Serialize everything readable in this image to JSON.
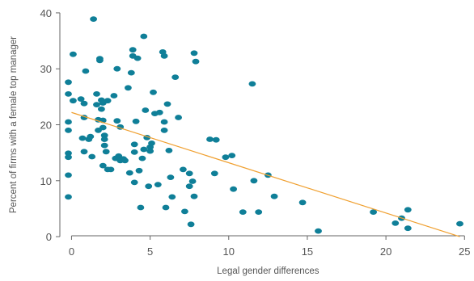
{
  "chart_data": {
    "type": "scatter",
    "xlabel": "Legal gender differences",
    "ylabel": "Percent of firms with a female top manager",
    "xlim": [
      -1,
      25.5
    ],
    "ylim": [
      -1,
      41
    ],
    "x_ticks": [
      0,
      5,
      10,
      15,
      20,
      25
    ],
    "y_ticks": [
      0,
      10,
      20,
      30,
      40
    ],
    "grid": false,
    "point_color": "#0f7f98",
    "trend_color": "#f0a030",
    "trendline": {
      "x": [
        0,
        24.7
      ],
      "y": [
        22.2,
        0
      ]
    },
    "points": [
      [
        -0.2,
        27.6
      ],
      [
        -0.2,
        25.5
      ],
      [
        -0.2,
        20.5
      ],
      [
        -0.2,
        19.0
      ],
      [
        -0.2,
        14.9
      ],
      [
        -0.2,
        14.2
      ],
      [
        -0.2,
        11.0
      ],
      [
        -0.2,
        7.1
      ],
      [
        0.1,
        32.6
      ],
      [
        0.1,
        24.3
      ],
      [
        0.6,
        24.6
      ],
      [
        0.8,
        23.8
      ],
      [
        0.8,
        21.3
      ],
      [
        0.7,
        17.6
      ],
      [
        0.8,
        15.2
      ],
      [
        0.9,
        29.6
      ],
      [
        1.1,
        17.4
      ],
      [
        1.2,
        17.9
      ],
      [
        1.3,
        14.3
      ],
      [
        1.4,
        38.9
      ],
      [
        1.6,
        25.5
      ],
      [
        1.6,
        23.6
      ],
      [
        1.7,
        20.9
      ],
      [
        1.7,
        19.0
      ],
      [
        1.8,
        31.5
      ],
      [
        1.8,
        31.8
      ],
      [
        1.9,
        24.4
      ],
      [
        1.9,
        22.8
      ],
      [
        2.0,
        23.9
      ],
      [
        2.0,
        20.8
      ],
      [
        2.0,
        19.5
      ],
      [
        2.0,
        12.7
      ],
      [
        2.1,
        18.1
      ],
      [
        2.1,
        17.4
      ],
      [
        2.1,
        16.3
      ],
      [
        2.2,
        15.2
      ],
      [
        2.3,
        24.3
      ],
      [
        2.3,
        12.0
      ],
      [
        2.5,
        12.0
      ],
      [
        2.7,
        25.2
      ],
      [
        2.8,
        14.0
      ],
      [
        2.9,
        30.0
      ],
      [
        2.9,
        20.7
      ],
      [
        3.0,
        14.4
      ],
      [
        3.1,
        13.6
      ],
      [
        3.1,
        19.6
      ],
      [
        3.3,
        13.9
      ],
      [
        3.4,
        13.6
      ],
      [
        3.6,
        26.6
      ],
      [
        3.7,
        11.4
      ],
      [
        3.8,
        29.3
      ],
      [
        3.9,
        32.3
      ],
      [
        3.9,
        33.4
      ],
      [
        4.0,
        15.1
      ],
      [
        4.0,
        16.5
      ],
      [
        4.0,
        9.7
      ],
      [
        4.1,
        20.6
      ],
      [
        4.2,
        31.9
      ],
      [
        4.3,
        11.8
      ],
      [
        4.4,
        5.2
      ],
      [
        4.5,
        14.0
      ],
      [
        4.6,
        35.8
      ],
      [
        4.6,
        15.6
      ],
      [
        4.7,
        22.6
      ],
      [
        4.8,
        17.7
      ],
      [
        4.9,
        9.0
      ],
      [
        5.0,
        16.0
      ],
      [
        5.0,
        15.3
      ],
      [
        5.1,
        16.7
      ],
      [
        5.2,
        25.8
      ],
      [
        5.3,
        22.0
      ],
      [
        5.5,
        9.3
      ],
      [
        5.6,
        22.2
      ],
      [
        5.8,
        33.0
      ],
      [
        5.9,
        32.3
      ],
      [
        5.9,
        20.5
      ],
      [
        5.9,
        19.0
      ],
      [
        6.0,
        5.2
      ],
      [
        6.1,
        23.7
      ],
      [
        6.2,
        15.4
      ],
      [
        6.3,
        10.6
      ],
      [
        6.4,
        7.1
      ],
      [
        6.6,
        28.5
      ],
      [
        6.8,
        21.3
      ],
      [
        7.1,
        12.0
      ],
      [
        7.2,
        4.5
      ],
      [
        7.5,
        11.3
      ],
      [
        7.5,
        9.0
      ],
      [
        7.7,
        9.9
      ],
      [
        7.8,
        7.2
      ],
      [
        7.8,
        32.8
      ],
      [
        7.9,
        31.3
      ],
      [
        7.6,
        2.2
      ],
      [
        8.8,
        17.4
      ],
      [
        9.2,
        17.3
      ],
      [
        9.1,
        11.3
      ],
      [
        9.8,
        14.2
      ],
      [
        10.2,
        14.5
      ],
      [
        10.3,
        8.5
      ],
      [
        10.9,
        4.4
      ],
      [
        11.5,
        27.3
      ],
      [
        11.6,
        10.0
      ],
      [
        11.9,
        4.4
      ],
      [
        12.5,
        11.0
      ],
      [
        12.9,
        7.2
      ],
      [
        14.7,
        6.1
      ],
      [
        15.7,
        1.0
      ],
      [
        19.2,
        4.4
      ],
      [
        20.6,
        2.4
      ],
      [
        21.0,
        3.3
      ],
      [
        21.4,
        4.8
      ],
      [
        21.4,
        1.5
      ],
      [
        24.7,
        2.3
      ]
    ]
  }
}
